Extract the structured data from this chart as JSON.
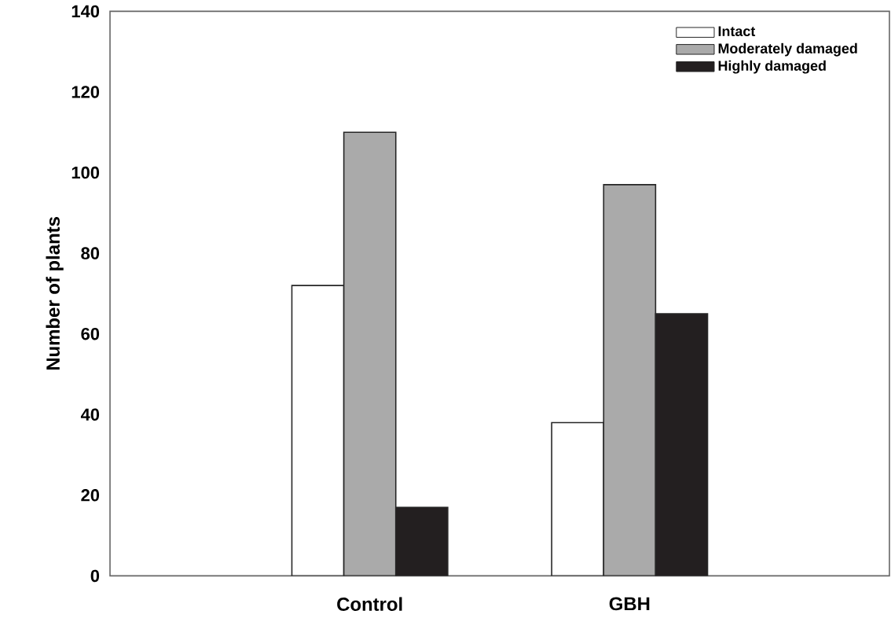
{
  "chart_data": {
    "type": "bar",
    "ylabel": "Number of plants",
    "categories": [
      "Control",
      "GBH"
    ],
    "series": [
      {
        "name": "Intact",
        "color": "#ffffff",
        "values": [
          72,
          38
        ]
      },
      {
        "name": "Moderately damaged",
        "color": "#aaaaaa",
        "values": [
          110,
          97
        ]
      },
      {
        "name": "Highly damaged",
        "color": "#231f20",
        "values": [
          17,
          65
        ]
      }
    ],
    "ylim": [
      0,
      140
    ],
    "yticks": [
      0,
      20,
      40,
      60,
      80,
      100,
      120,
      140
    ],
    "legend": "top right",
    "grid": false
  }
}
